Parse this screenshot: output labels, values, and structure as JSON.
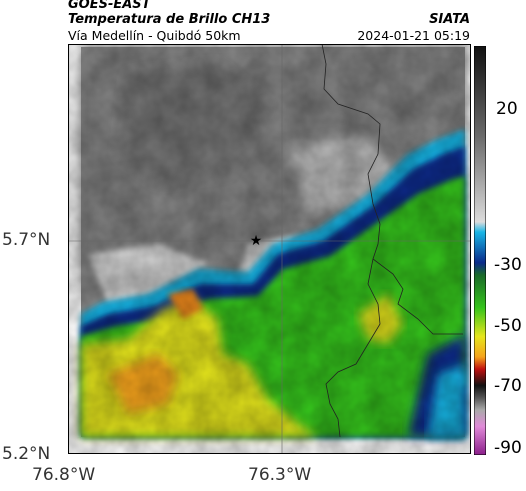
{
  "header": {
    "satellite": "GOES-EAST",
    "product": "Temperatura de Brillo CH13",
    "region": "Vía Medellín - Quibdó 50km",
    "organization": "SIATA",
    "timestamp": "2024-01-21 05:19"
  },
  "map": {
    "lat_labels": [
      "5.7°N",
      "5.2°N"
    ],
    "lon_labels": [
      "76.8°W",
      "76.3°W"
    ],
    "marker": "star-icon"
  },
  "colorbar": {
    "ticks": [
      "20",
      "-30",
      "-50",
      "-70",
      "-90"
    ]
  },
  "colors": {
    "cloud_gray": "#7a7a7a",
    "warm_gray": "#bdbdbd",
    "cyan": "#18b6e6",
    "navy": "#0a2a8a",
    "green": "#35c41b",
    "yellow": "#e6e61c",
    "orange": "#f5a31b"
  }
}
